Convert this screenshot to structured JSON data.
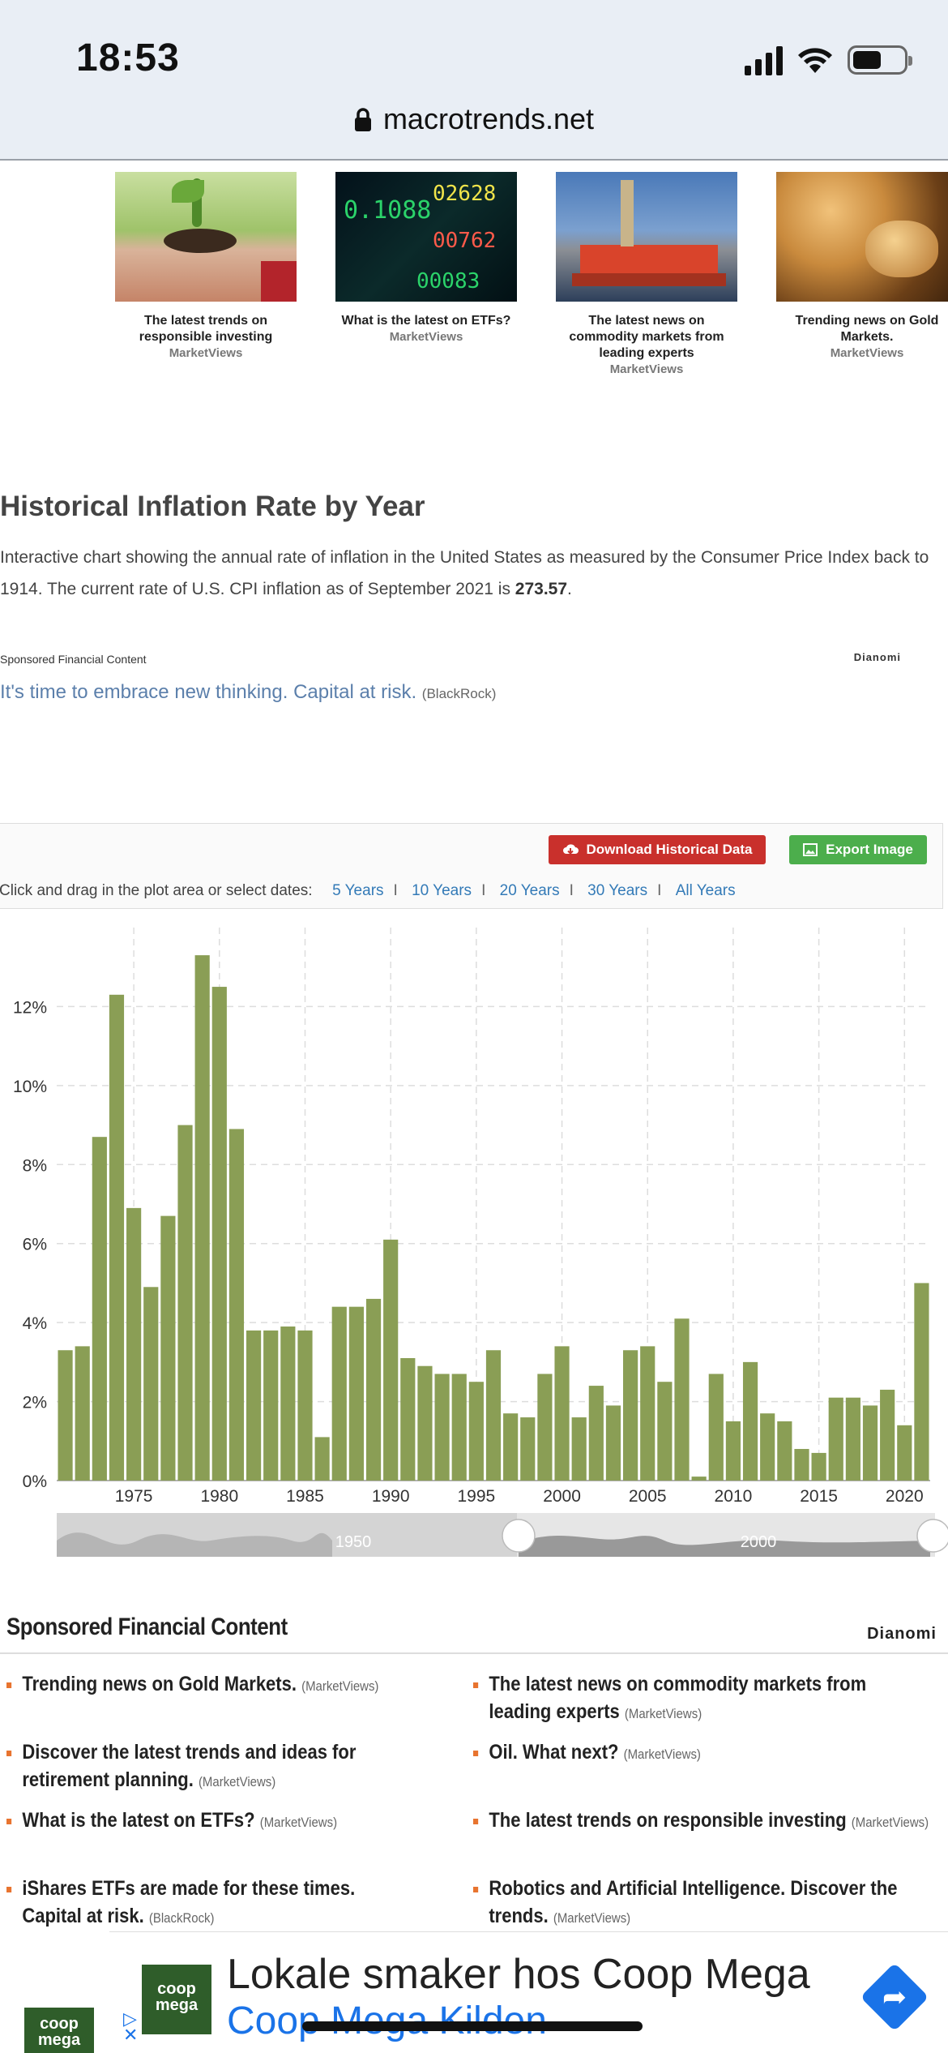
{
  "status_bar": {
    "time": "18:53"
  },
  "browser": {
    "url": "macrotrends.net"
  },
  "cards": [
    {
      "title": "The latest trends on responsible investing",
      "source": "MarketViews"
    },
    {
      "title": "What is the latest on ETFs?",
      "source": "MarketViews"
    },
    {
      "title": "The latest news on commodity markets from leading experts",
      "source": "MarketViews"
    },
    {
      "title": "Trending news on Gold Markets.",
      "source": "MarketViews"
    }
  ],
  "article": {
    "title": "Historical Inflation Rate by Year",
    "desc_before": "Interactive chart showing the annual rate of inflation in the United States as measured by the Consumer Price Index back to 1914. The current rate of U.S. CPI inflation as of September 2021 is ",
    "desc_value": "273.57",
    "desc_after": "."
  },
  "sponsor_small": {
    "label": "Sponsored Financial Content",
    "brand": "Dianomi",
    "link_text": "It's time to embrace new thinking. Capital at risk.",
    "link_source": "(BlackRock)"
  },
  "controls": {
    "download_label": "Download Historical Data",
    "export_label": "Export Image",
    "range_prompt": "Click and drag in the plot area or select dates:",
    "ranges": [
      "5 Years",
      "10 Years",
      "20 Years",
      "30 Years",
      "All Years"
    ]
  },
  "chart_data": {
    "type": "bar",
    "title": "",
    "xlabel": "",
    "ylabel": "",
    "ylim": [
      0,
      14
    ],
    "y_ticks": [
      "0%",
      "2%",
      "4%",
      "6%",
      "8%",
      "10%",
      "12%"
    ],
    "x_ticks": [
      "1975",
      "1980",
      "1985",
      "1990",
      "1995",
      "2000",
      "2005",
      "2010",
      "2015",
      "2020"
    ],
    "grid": true,
    "bar_color": "#8a9e55",
    "x": [
      1971,
      1972,
      1973,
      1974,
      1975,
      1976,
      1977,
      1978,
      1979,
      1980,
      1981,
      1982,
      1983,
      1984,
      1985,
      1986,
      1987,
      1988,
      1989,
      1990,
      1991,
      1992,
      1993,
      1994,
      1995,
      1996,
      1997,
      1998,
      1999,
      2000,
      2001,
      2002,
      2003,
      2004,
      2005,
      2006,
      2007,
      2008,
      2009,
      2010,
      2011,
      2012,
      2013,
      2014,
      2015,
      2016,
      2017,
      2018,
      2019,
      2020,
      2021
    ],
    "values": [
      3.3,
      3.4,
      8.7,
      12.3,
      6.9,
      4.9,
      6.7,
      9.0,
      13.3,
      12.5,
      8.9,
      3.8,
      3.8,
      3.9,
      3.8,
      1.1,
      4.4,
      4.4,
      4.6,
      6.1,
      3.1,
      2.9,
      2.7,
      2.7,
      2.5,
      3.3,
      1.7,
      1.6,
      2.7,
      3.4,
      1.6,
      2.4,
      1.9,
      3.3,
      3.4,
      2.5,
      4.1,
      0.1,
      2.7,
      1.5,
      3.0,
      1.7,
      1.5,
      0.8,
      0.7,
      2.1,
      2.1,
      1.9,
      2.3,
      1.4,
      5.0
    ],
    "navigator_labels": [
      "1950",
      "2000"
    ]
  },
  "sponsored_list": {
    "title": "Sponsored Financial Content",
    "brand": "Dianomi",
    "items": [
      {
        "text": "Trending news on Gold Markets.",
        "source": "(MarketViews)"
      },
      {
        "text": "The latest news on commodity markets from leading experts",
        "source": "(MarketViews)"
      },
      {
        "text": "Discover the latest trends and ideas for retirement planning.",
        "source": "(MarketViews)"
      },
      {
        "text": "Oil. What next?",
        "source": "(MarketViews)"
      },
      {
        "text": "What is the latest on ETFs?",
        "source": "(MarketViews)"
      },
      {
        "text": "The latest trends on responsible investing",
        "source": "(MarketViews)"
      },
      {
        "text": "iShares ETFs are made for these times. Capital at risk.",
        "source": "(BlackRock)"
      },
      {
        "text": "Robotics and Artificial Intelligence. Discover the trends.",
        "source": "(MarketViews)"
      }
    ]
  },
  "ad": {
    "logo_line1": "coop",
    "logo_line2": "mega",
    "title": "Lokale smaker hos Coop Mega",
    "subtitle": "Coop Mega Kilden"
  }
}
